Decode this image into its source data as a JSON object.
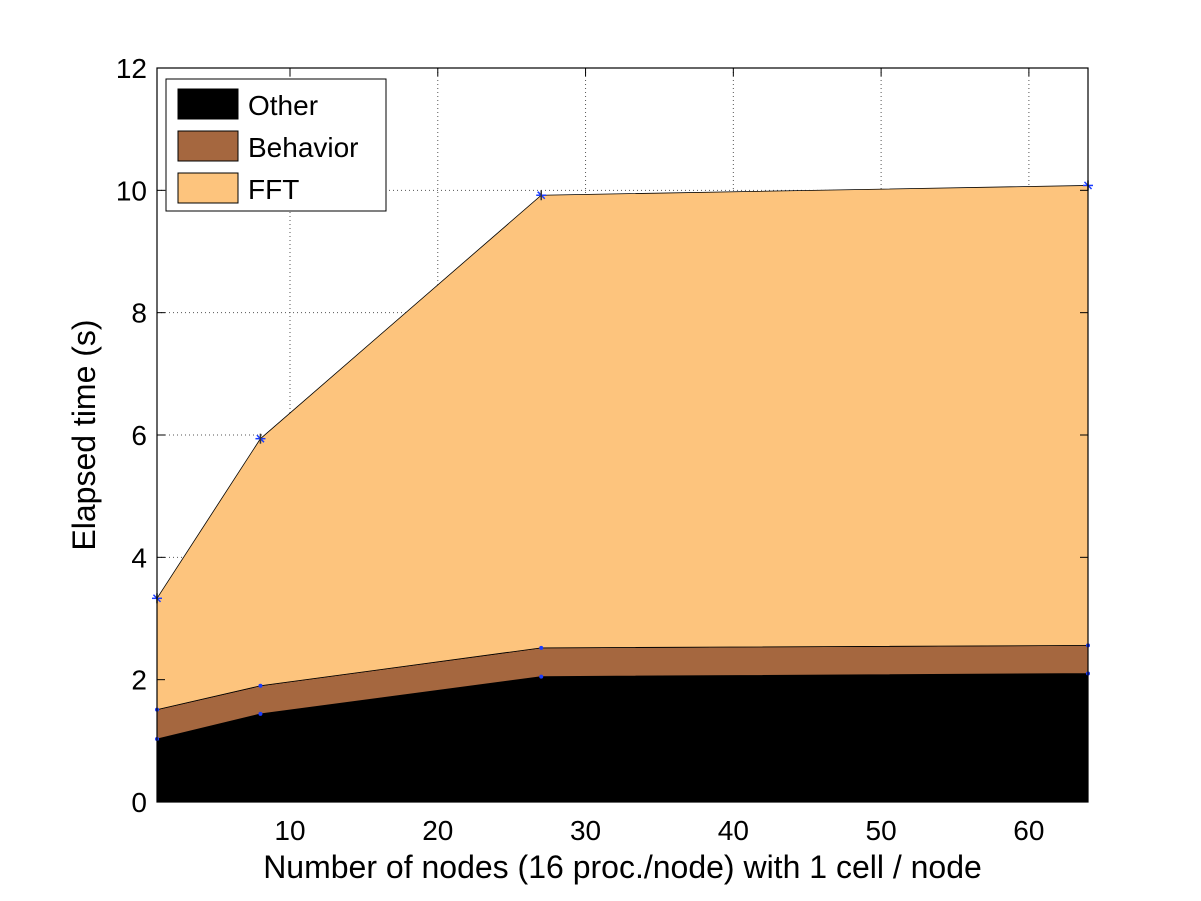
{
  "chart_data": {
    "type": "area",
    "stacked": true,
    "x": [
      1,
      8,
      27,
      64
    ],
    "series": [
      {
        "name": "Other",
        "color": "#000000",
        "values": [
          1.03,
          1.44,
          2.05,
          2.1
        ]
      },
      {
        "name": "Behavior",
        "color": "#a5673f",
        "values": [
          0.48,
          0.46,
          0.47,
          0.46
        ]
      },
      {
        "name": "FFT",
        "color": "#fdc47d",
        "values": [
          1.82,
          4.04,
          7.4,
          7.52
        ]
      }
    ],
    "totals": [
      3.33,
      5.94,
      9.92,
      10.08
    ],
    "xlabel": "Number of nodes (16 proc./node) with 1 cell / node",
    "ylabel": "Elapsed time (s)",
    "xlim": [
      1,
      64
    ],
    "ylim": [
      0,
      12
    ],
    "xticks": [
      10,
      20,
      30,
      40,
      50,
      60
    ],
    "yticks": [
      0,
      2,
      4,
      6,
      8,
      10,
      12
    ],
    "grid": true,
    "legend_position": "top-left",
    "legend_order": [
      "Other",
      "Behavior",
      "FFT"
    ]
  }
}
